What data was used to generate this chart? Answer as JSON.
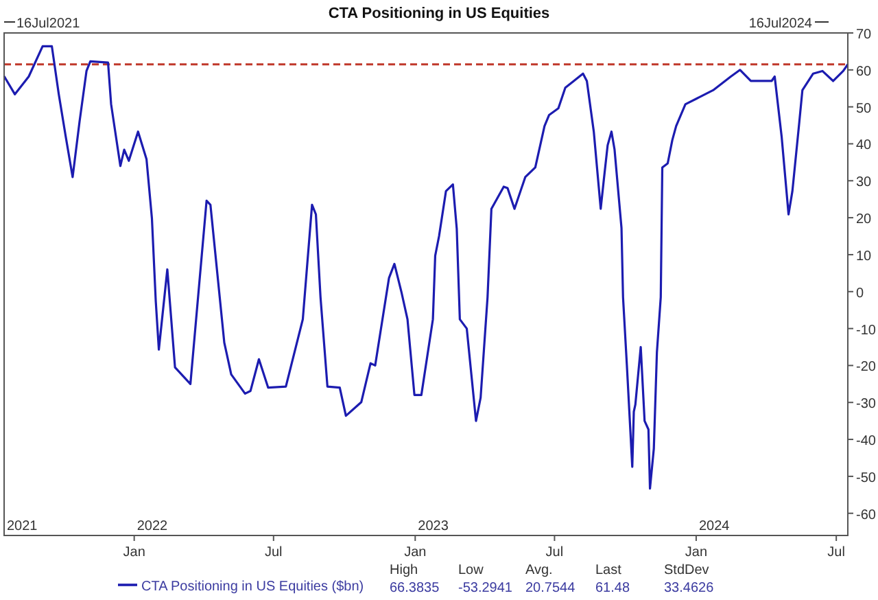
{
  "chart_data": {
    "type": "line",
    "title": "CTA Positioning in US Equities",
    "xlim": [
      "2021-07-16",
      "2024-07-16"
    ],
    "xticks": [
      {
        "value": "2022-01-01",
        "label": "Jan"
      },
      {
        "value": "2022-07-01",
        "label": "Jul"
      },
      {
        "value": "2023-01-01",
        "label": "Jan"
      },
      {
        "value": "2023-07-01",
        "label": "Jul"
      },
      {
        "value": "2024-01-01",
        "label": "Jan"
      },
      {
        "value": "2024-07-01",
        "label": "Jul"
      }
    ],
    "ylim": [
      -66,
      70
    ],
    "yticks": [
      -60,
      -50,
      -40,
      -30,
      -20,
      -10,
      0,
      10,
      20,
      30,
      40,
      50,
      60,
      70
    ],
    "grid": false,
    "legend": "bottom",
    "line_style": "solid",
    "marker": "none",
    "ref_lines": [
      {
        "axis": "y",
        "value": 61.48,
        "color": "#c0392b",
        "line_style": "dashed"
      }
    ],
    "annotations": [
      "16Jul2021",
      "16Jul2024",
      "2021",
      "2022",
      "2023",
      "2024",
      "High",
      "Low",
      "Avg.",
      "Last",
      "StdDev",
      "66.3835",
      "-53.2941",
      "20.7544",
      "61.48",
      "33.4626"
    ],
    "series": [
      {
        "name": "CTA Positioning in US Equities ($bn)",
        "color": "#1c1cb0",
        "x": [
          "2021-07-16",
          "2021-07-30",
          "2021-08-17",
          "2021-09-04",
          "2021-09-16",
          "2021-09-25",
          "2021-10-04",
          "2021-10-13",
          "2021-10-22",
          "2021-10-31",
          "2021-11-05",
          "2021-11-28",
          "2021-12-02",
          "2021-12-14",
          "2021-12-19",
          "2021-12-25",
          "2022-01-06",
          "2022-01-17",
          "2022-01-24",
          "2022-01-29",
          "2022-02-02",
          "2022-02-13",
          "2022-02-23",
          "2022-03-15",
          "2022-04-05",
          "2022-04-10",
          "2022-04-28",
          "2022-05-07",
          "2022-05-25",
          "2022-06-01",
          "2022-06-12",
          "2022-06-24",
          "2022-07-17",
          "2022-08-08",
          "2022-08-20",
          "2022-08-25",
          "2022-08-31",
          "2022-09-09",
          "2022-09-25",
          "2022-10-03",
          "2022-10-23",
          "2022-11-04",
          "2022-11-10",
          "2022-11-28",
          "2022-12-05",
          "2022-12-14",
          "2022-12-22",
          "2022-12-31",
          "2023-01-09",
          "2023-01-24",
          "2023-01-27",
          "2023-02-01",
          "2023-02-10",
          "2023-02-19",
          "2023-02-24",
          "2023-02-28",
          "2023-03-09",
          "2023-03-21",
          "2023-03-27",
          "2023-04-05",
          "2023-04-10",
          "2023-04-26",
          "2023-05-01",
          "2023-05-10",
          "2023-05-24",
          "2023-06-06",
          "2023-06-18",
          "2023-06-24",
          "2023-07-06",
          "2023-07-15",
          "2023-07-26",
          "2023-08-07",
          "2023-08-12",
          "2023-08-21",
          "2023-08-30",
          "2023-09-03",
          "2023-09-08",
          "2023-09-13",
          "2023-09-17",
          "2023-09-26",
          "2023-09-28",
          "2023-10-03",
          "2023-10-10",
          "2023-10-12",
          "2023-10-14",
          "2023-10-21",
          "2023-10-26",
          "2023-10-31",
          "2023-11-02",
          "2023-11-07",
          "2023-11-11",
          "2023-11-16",
          "2023-11-18",
          "2023-11-25",
          "2023-12-01",
          "2023-12-06",
          "2023-12-18",
          "2024-01-05",
          "2024-01-23",
          "2024-02-15",
          "2024-02-27",
          "2024-03-12",
          "2024-04-08",
          "2024-04-12",
          "2024-04-21",
          "2024-04-30",
          "2024-05-05",
          "2024-05-14",
          "2024-05-18",
          "2024-06-01",
          "2024-06-13",
          "2024-06-27",
          "2024-07-10",
          "2024-07-16"
        ],
        "values": [
          58.3,
          53.4,
          58.2,
          66.4,
          66.4,
          53.4,
          42,
          31,
          46,
          59.7,
          62.3,
          62,
          50.7,
          34,
          38.4,
          35.4,
          43.3,
          35.8,
          19.8,
          -2.6,
          -15.7,
          6,
          -20.5,
          -25,
          24.6,
          23.5,
          -13.8,
          -22.4,
          -27.6,
          -26.9,
          -18.3,
          -26,
          -25.7,
          -7.5,
          23.5,
          20.9,
          -1.5,
          -25.7,
          -26,
          -33.6,
          -29.9,
          -19.4,
          -20,
          3.7,
          7.5,
          0,
          -7.5,
          -28,
          -28,
          -7.5,
          9.7,
          15,
          27.2,
          29,
          17,
          -7.5,
          -10,
          -35,
          -28.7,
          -1.5,
          22.4,
          28.4,
          28,
          22.4,
          31,
          33.6,
          44.8,
          47.8,
          49.6,
          55.2,
          57,
          59,
          57,
          43.3,
          22.4,
          30.2,
          39.6,
          43.3,
          38.4,
          17.2,
          -1.5,
          -20,
          -47.4,
          -32.5,
          -30.6,
          -15,
          -35,
          -37.3,
          -53.3,
          -42.5,
          -16.4,
          -1.5,
          33.6,
          34.7,
          41,
          44.8,
          50.7,
          52.6,
          54.5,
          58.2,
          60,
          57,
          57,
          58.2,
          42,
          20.9,
          27.2,
          45.9,
          54.5,
          59,
          59.7,
          57,
          59.7,
          61.5
        ]
      }
    ]
  }
}
